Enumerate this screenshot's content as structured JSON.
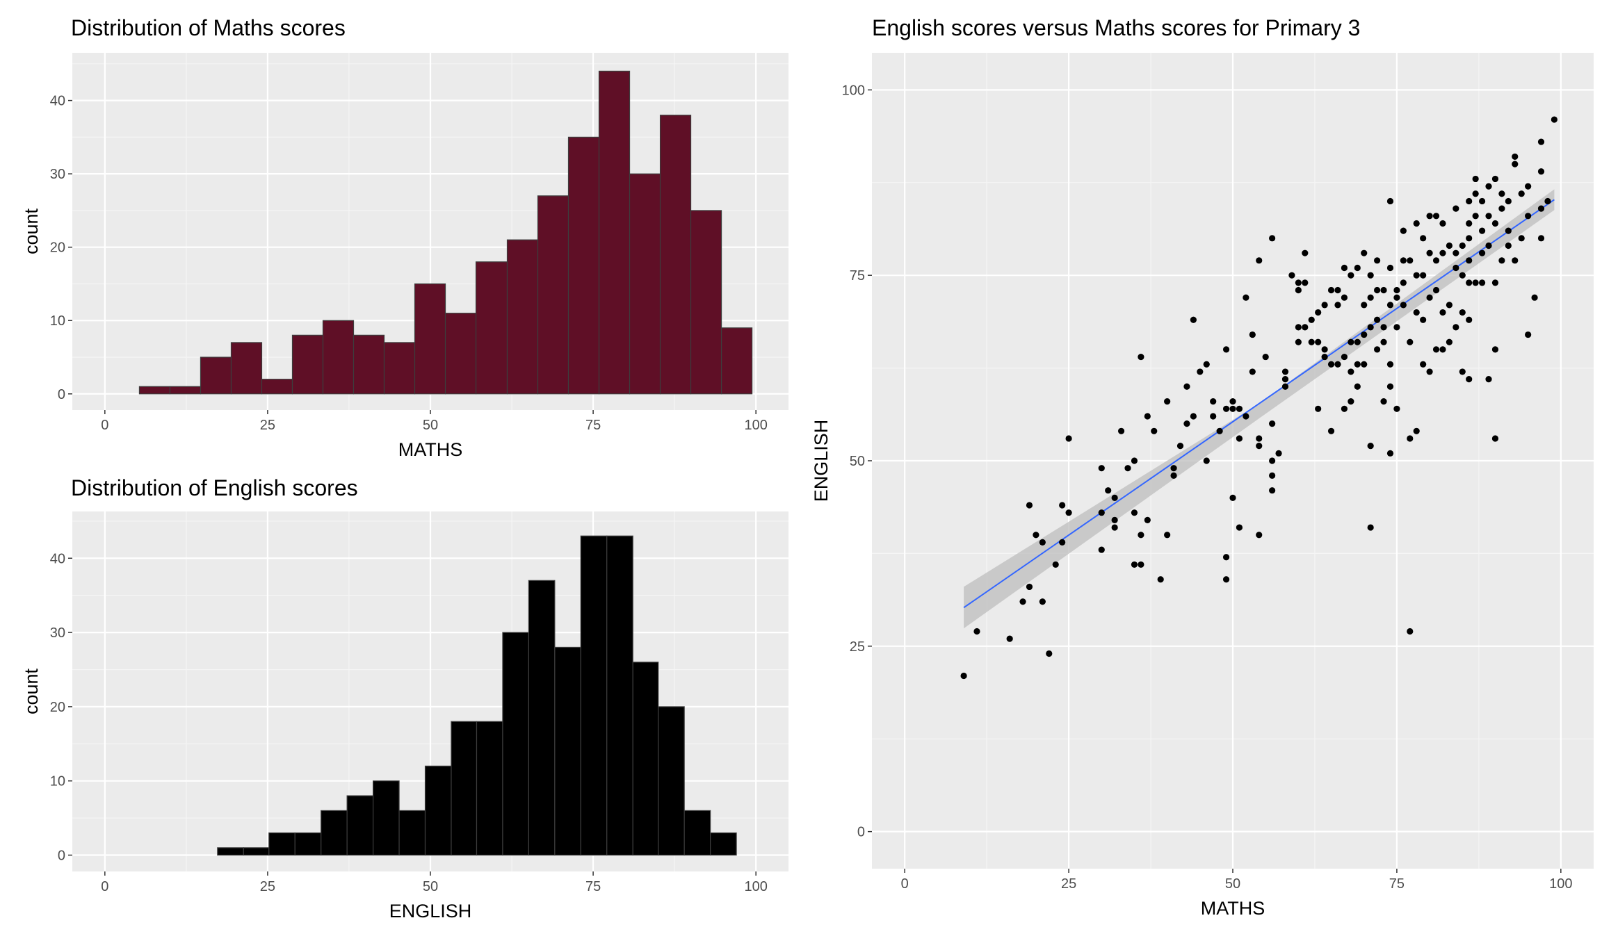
{
  "chart_data": [
    {
      "id": "maths-hist",
      "type": "bar",
      "title": "Distribution of Maths scores",
      "xlabel": "MATHS",
      "ylabel": "count",
      "xlim": [
        -5,
        105
      ],
      "ylim": [
        -2.2,
        46.5
      ],
      "x_ticks": [
        0,
        25,
        50,
        75,
        100
      ],
      "y_ticks": [
        0,
        10,
        20,
        30,
        40
      ],
      "fill": "#5f0f26",
      "outline": "#3d3d3d",
      "bins": [
        {
          "x0": 5.3,
          "x1": 10.0,
          "count": 1
        },
        {
          "x0": 10.0,
          "x1": 14.7,
          "count": 1
        },
        {
          "x0": 14.7,
          "x1": 19.4,
          "count": 5
        },
        {
          "x0": 19.4,
          "x1": 24.1,
          "count": 7
        },
        {
          "x0": 24.1,
          "x1": 28.8,
          "count": 2
        },
        {
          "x0": 28.8,
          "x1": 33.5,
          "count": 8
        },
        {
          "x0": 33.5,
          "x1": 38.2,
          "count": 10
        },
        {
          "x0": 38.2,
          "x1": 42.9,
          "count": 8
        },
        {
          "x0": 42.9,
          "x1": 47.6,
          "count": 7
        },
        {
          "x0": 47.6,
          "x1": 52.3,
          "count": 15
        },
        {
          "x0": 52.3,
          "x1": 57.0,
          "count": 11
        },
        {
          "x0": 57.0,
          "x1": 61.8,
          "count": 18
        },
        {
          "x0": 61.8,
          "x1": 66.5,
          "count": 21
        },
        {
          "x0": 66.5,
          "x1": 71.2,
          "count": 27
        },
        {
          "x0": 71.2,
          "x1": 75.9,
          "count": 35
        },
        {
          "x0": 75.9,
          "x1": 80.6,
          "count": 44
        },
        {
          "x0": 80.6,
          "x1": 85.3,
          "count": 30
        },
        {
          "x0": 85.3,
          "x1": 90.0,
          "count": 38
        },
        {
          "x0": 90.0,
          "x1": 94.7,
          "count": 25
        },
        {
          "x0": 94.7,
          "x1": 99.4,
          "count": 9
        }
      ]
    },
    {
      "id": "english-hist",
      "type": "bar",
      "title": "Distribution of English scores",
      "xlabel": "ENGLISH",
      "ylabel": "count",
      "xlim": [
        -5,
        105
      ],
      "ylim": [
        -2.2,
        46.3
      ],
      "x_ticks": [
        0,
        25,
        50,
        75,
        100
      ],
      "y_ticks": [
        0,
        10,
        20,
        30,
        40
      ],
      "fill": "#000000",
      "outline": "#3d3d3d",
      "bins": [
        {
          "x0": 17.3,
          "x1": 21.3,
          "count": 1
        },
        {
          "x0": 21.3,
          "x1": 25.2,
          "count": 1
        },
        {
          "x0": 25.2,
          "x1": 29.2,
          "count": 3
        },
        {
          "x0": 29.2,
          "x1": 33.2,
          "count": 3
        },
        {
          "x0": 33.2,
          "x1": 37.2,
          "count": 6
        },
        {
          "x0": 37.2,
          "x1": 41.2,
          "count": 8
        },
        {
          "x0": 41.2,
          "x1": 45.2,
          "count": 10
        },
        {
          "x0": 45.2,
          "x1": 49.2,
          "count": 6
        },
        {
          "x0": 49.2,
          "x1": 53.2,
          "count": 12
        },
        {
          "x0": 53.2,
          "x1": 57.1,
          "count": 18
        },
        {
          "x0": 57.1,
          "x1": 61.1,
          "count": 18
        },
        {
          "x0": 61.1,
          "x1": 65.1,
          "count": 30
        },
        {
          "x0": 65.1,
          "x1": 69.1,
          "count": 37
        },
        {
          "x0": 69.1,
          "x1": 73.1,
          "count": 28
        },
        {
          "x0": 73.1,
          "x1": 77.1,
          "count": 43
        },
        {
          "x0": 77.1,
          "x1": 81.1,
          "count": 43
        },
        {
          "x0": 81.1,
          "x1": 85.0,
          "count": 26
        },
        {
          "x0": 85.0,
          "x1": 89.0,
          "count": 20
        },
        {
          "x0": 89.0,
          "x1": 93.0,
          "count": 6
        },
        {
          "x0": 93.0,
          "x1": 97.0,
          "count": 3
        }
      ]
    },
    {
      "id": "scatter",
      "type": "scatter",
      "title": "English scores versus Maths scores for Primary 3",
      "xlabel": "MATHS",
      "ylabel": "ENGLISH",
      "xlim": [
        -5,
        105
      ],
      "ylim": [
        -5,
        105
      ],
      "x_ticks": [
        0,
        25,
        50,
        75,
        100
      ],
      "y_ticks": [
        0,
        25,
        50,
        75,
        100
      ],
      "point_color": "#000000",
      "fit_line": {
        "x": [
          9,
          99
        ],
        "y": [
          30.2,
          85.2
        ],
        "color": "#3366ff"
      },
      "confidence_band": {
        "x": [
          9,
          54,
          99
        ],
        "upper": [
          33.0,
          57.7,
          86.6
        ],
        "lower": [
          27.4,
          55.7,
          83.8
        ],
        "color": "#bdbdbd"
      },
      "points": [
        [
          9,
          21
        ],
        [
          11,
          27
        ],
        [
          16,
          26
        ],
        [
          18,
          31
        ],
        [
          19,
          33
        ],
        [
          19,
          44
        ],
        [
          20,
          40
        ],
        [
          21,
          31
        ],
        [
          21,
          39
        ],
        [
          22,
          24
        ],
        [
          23,
          36
        ],
        [
          24,
          39
        ],
        [
          24,
          44
        ],
        [
          25,
          43
        ],
        [
          25,
          53
        ],
        [
          30,
          38
        ],
        [
          30,
          43
        ],
        [
          30,
          49
        ],
        [
          31,
          46
        ],
        [
          32,
          41
        ],
        [
          32,
          42
        ],
        [
          32,
          45
        ],
        [
          33,
          54
        ],
        [
          34,
          49
        ],
        [
          35,
          43
        ],
        [
          35,
          50
        ],
        [
          35,
          36
        ],
        [
          36,
          36
        ],
        [
          36,
          40
        ],
        [
          36,
          64
        ],
        [
          37,
          42
        ],
        [
          37,
          56
        ],
        [
          38,
          54
        ],
        [
          39,
          34
        ],
        [
          40,
          40
        ],
        [
          40,
          58
        ],
        [
          41,
          48
        ],
        [
          41,
          49
        ],
        [
          42,
          52
        ],
        [
          43,
          55
        ],
        [
          43,
          60
        ],
        [
          44,
          56
        ],
        [
          44,
          69
        ],
        [
          45,
          62
        ],
        [
          46,
          63
        ],
        [
          46,
          50
        ],
        [
          47,
          56
        ],
        [
          47,
          58
        ],
        [
          48,
          54
        ],
        [
          49,
          65
        ],
        [
          49,
          57
        ],
        [
          49,
          37
        ],
        [
          49,
          34
        ],
        [
          50,
          45
        ],
        [
          50,
          57
        ],
        [
          50,
          58
        ],
        [
          51,
          41
        ],
        [
          51,
          53
        ],
        [
          51,
          57
        ],
        [
          52,
          56
        ],
        [
          52,
          72
        ],
        [
          53,
          67
        ],
        [
          53,
          62
        ],
        [
          54,
          40
        ],
        [
          54,
          53
        ],
        [
          54,
          52
        ],
        [
          54,
          77
        ],
        [
          55,
          64
        ],
        [
          56,
          80
        ],
        [
          56,
          50
        ],
        [
          56,
          55
        ],
        [
          56,
          48
        ],
        [
          56,
          46
        ],
        [
          57,
          51
        ],
        [
          58,
          62
        ],
        [
          58,
          60
        ],
        [
          58,
          61
        ],
        [
          59,
          75
        ],
        [
          60,
          74
        ],
        [
          60,
          73
        ],
        [
          60,
          68
        ],
        [
          60,
          66
        ],
        [
          61,
          78
        ],
        [
          61,
          74
        ],
        [
          61,
          68
        ],
        [
          62,
          66
        ],
        [
          62,
          69
        ],
        [
          63,
          57
        ],
        [
          63,
          66
        ],
        [
          63,
          70
        ],
        [
          64,
          65
        ],
        [
          64,
          71
        ],
        [
          64,
          64
        ],
        [
          65,
          54
        ],
        [
          65,
          63
        ],
        [
          65,
          73
        ],
        [
          66,
          63
        ],
        [
          66,
          71
        ],
        [
          66,
          73
        ],
        [
          67,
          57
        ],
        [
          67,
          64
        ],
        [
          67,
          72
        ],
        [
          67,
          76
        ],
        [
          68,
          58
        ],
        [
          68,
          62
        ],
        [
          68,
          66
        ],
        [
          68,
          75
        ],
        [
          69,
          60
        ],
        [
          69,
          63
        ],
        [
          69,
          66
        ],
        [
          69,
          76
        ],
        [
          70,
          71
        ],
        [
          70,
          67
        ],
        [
          70,
          63
        ],
        [
          70,
          78
        ],
        [
          71,
          68
        ],
        [
          71,
          72
        ],
        [
          71,
          41
        ],
        [
          71,
          52
        ],
        [
          71,
          75
        ],
        [
          72,
          65
        ],
        [
          72,
          69
        ],
        [
          72,
          73
        ],
        [
          72,
          77
        ],
        [
          73,
          58
        ],
        [
          73,
          68
        ],
        [
          73,
          73
        ],
        [
          73,
          66
        ],
        [
          74,
          71
        ],
        [
          74,
          76
        ],
        [
          74,
          51
        ],
        [
          74,
          60
        ],
        [
          74,
          63
        ],
        [
          74,
          85
        ],
        [
          75,
          57
        ],
        [
          75,
          72
        ],
        [
          75,
          68
        ],
        [
          75,
          73
        ],
        [
          76,
          81
        ],
        [
          76,
          77
        ],
        [
          76,
          74
        ],
        [
          76,
          71
        ],
        [
          77,
          66
        ],
        [
          77,
          53
        ],
        [
          77,
          27
        ],
        [
          77,
          77
        ],
        [
          78,
          54
        ],
        [
          78,
          70
        ],
        [
          78,
          75
        ],
        [
          78,
          82
        ],
        [
          79,
          63
        ],
        [
          79,
          69
        ],
        [
          79,
          75
        ],
        [
          79,
          80
        ],
        [
          80,
          62
        ],
        [
          80,
          72
        ],
        [
          80,
          83
        ],
        [
          80,
          78
        ],
        [
          81,
          65
        ],
        [
          81,
          73
        ],
        [
          81,
          77
        ],
        [
          81,
          83
        ],
        [
          82,
          65
        ],
        [
          82,
          70
        ],
        [
          82,
          78
        ],
        [
          82,
          82
        ],
        [
          83,
          79
        ],
        [
          83,
          71
        ],
        [
          83,
          66
        ],
        [
          84,
          84
        ],
        [
          84,
          78
        ],
        [
          84,
          76
        ],
        [
          84,
          68
        ],
        [
          85,
          62
        ],
        [
          85,
          70
        ],
        [
          85,
          75
        ],
        [
          85,
          79
        ],
        [
          86,
          80
        ],
        [
          86,
          61
        ],
        [
          86,
          69
        ],
        [
          86,
          74
        ],
        [
          86,
          77
        ],
        [
          86,
          82
        ],
        [
          86,
          85
        ],
        [
          87,
          83
        ],
        [
          87,
          86
        ],
        [
          87,
          74
        ],
        [
          87,
          88
        ],
        [
          88,
          78
        ],
        [
          88,
          74
        ],
        [
          88,
          81
        ],
        [
          88,
          85
        ],
        [
          89,
          61
        ],
        [
          89,
          79
        ],
        [
          89,
          83
        ],
        [
          89,
          87
        ],
        [
          90,
          74
        ],
        [
          90,
          65
        ],
        [
          90,
          53
        ],
        [
          90,
          82
        ],
        [
          90,
          88
        ],
        [
          91,
          77
        ],
        [
          91,
          84
        ],
        [
          91,
          86
        ],
        [
          92,
          79
        ],
        [
          92,
          81
        ],
        [
          92,
          85
        ],
        [
          93,
          91
        ],
        [
          93,
          77
        ],
        [
          93,
          90
        ],
        [
          94,
          80
        ],
        [
          94,
          86
        ],
        [
          95,
          83
        ],
        [
          95,
          87
        ],
        [
          95,
          67
        ],
        [
          96,
          72
        ],
        [
          97,
          80
        ],
        [
          97,
          84
        ],
        [
          97,
          89
        ],
        [
          97,
          93
        ],
        [
          98,
          85
        ],
        [
          99,
          96
        ]
      ]
    }
  ]
}
